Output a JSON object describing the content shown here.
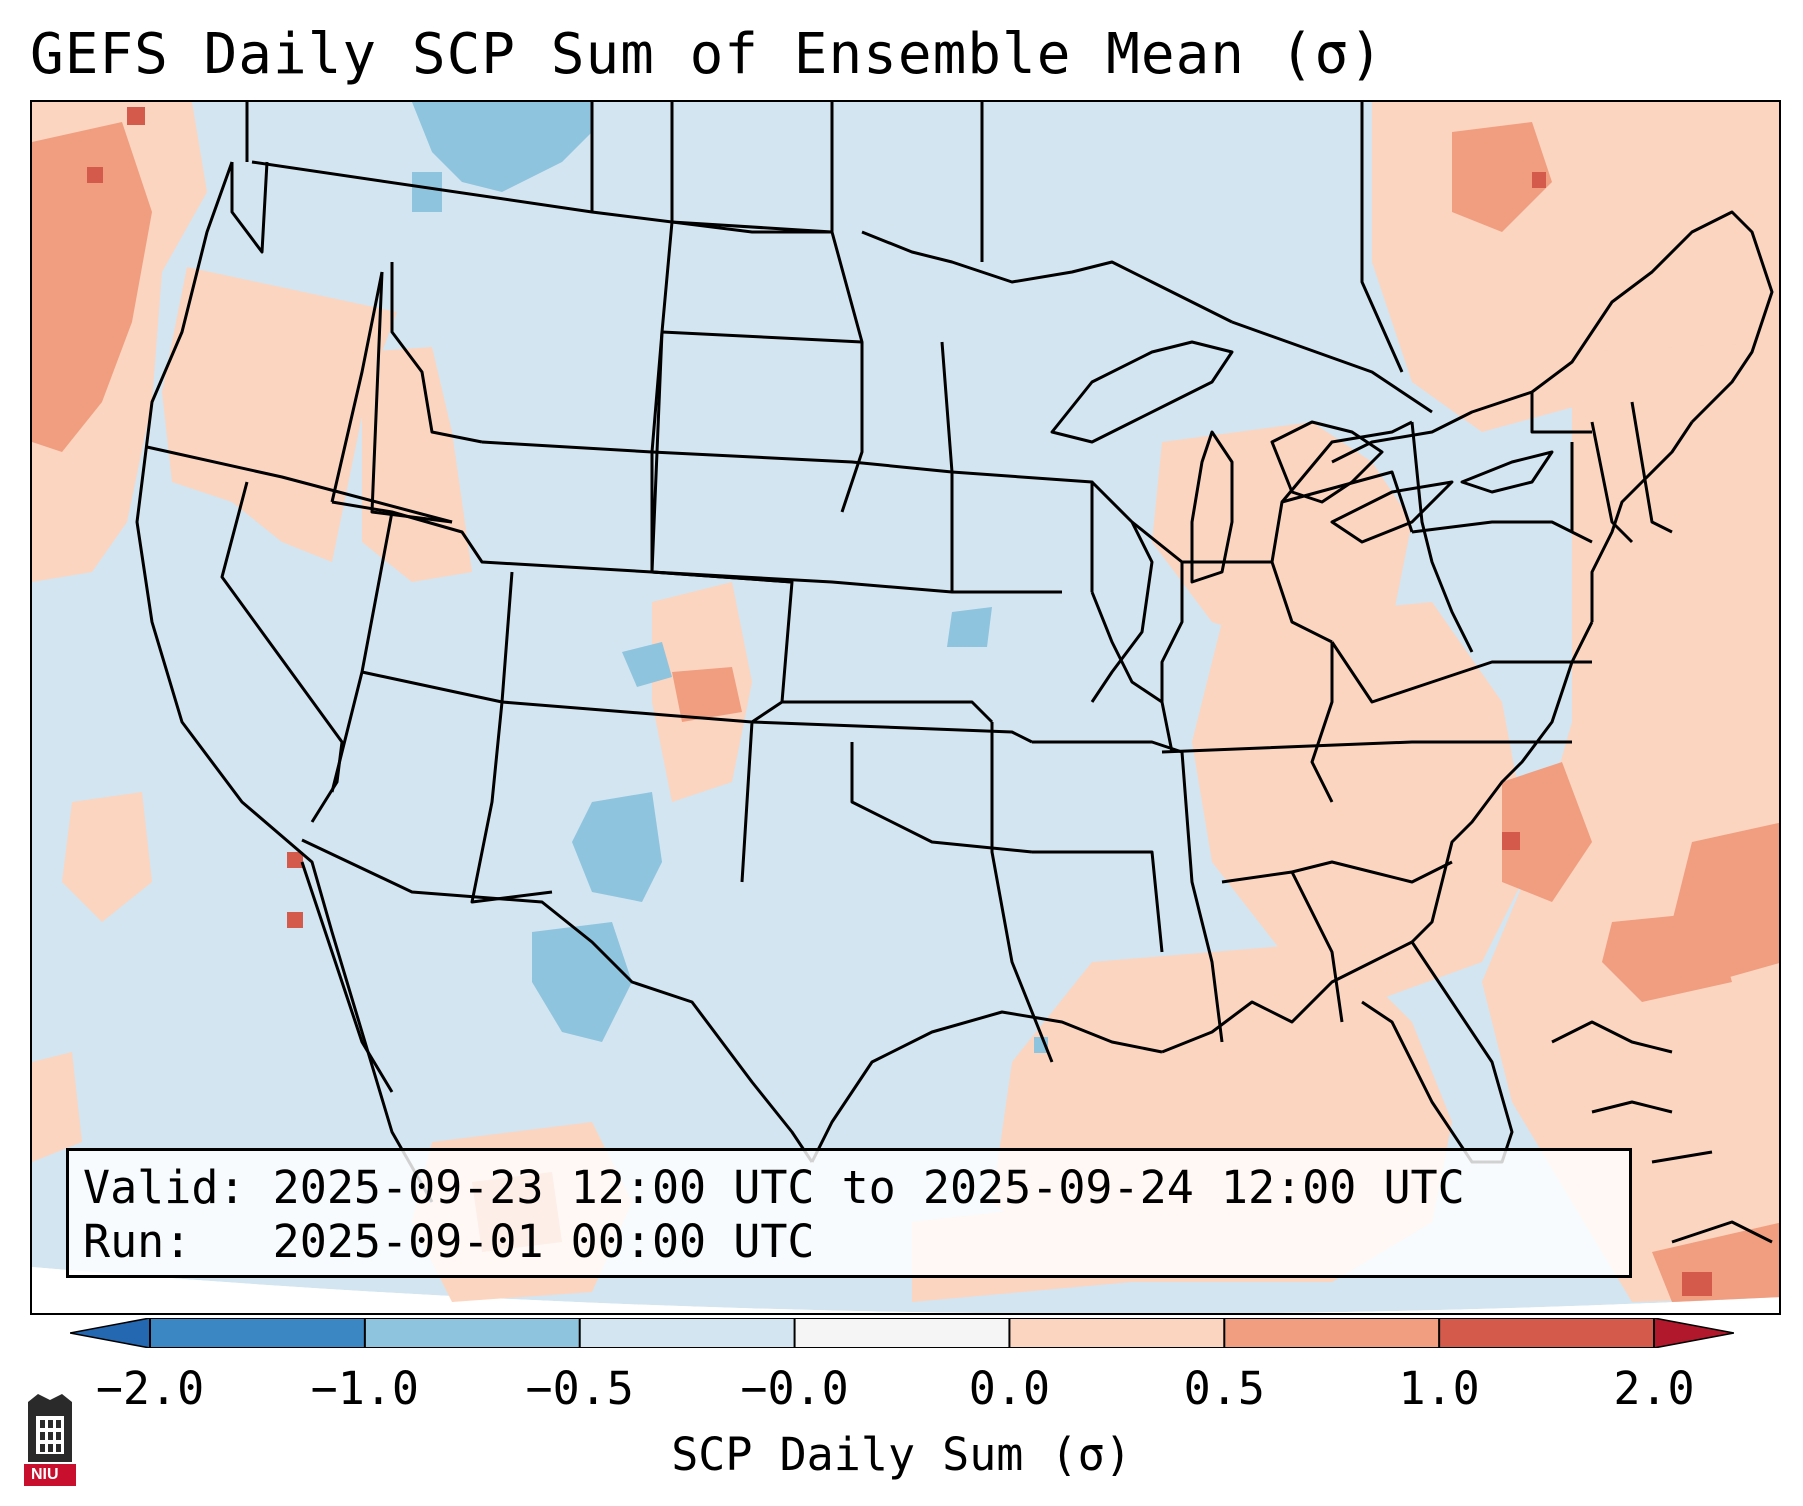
{
  "title": "GEFS Daily SCP Sum of Ensemble Mean (σ)",
  "annotation": {
    "valid_label": "Valid:",
    "valid_value": "2025-09-23 12:00 UTC to 2025-09-24 12:00 UTC",
    "run_label": "Run:",
    "run_value": "2025-09-01 00:00 UTC"
  },
  "colorbar": {
    "label": "SCP Daily Sum (σ)",
    "tick_labels": [
      "−2.0",
      "−1.0",
      "−0.5",
      "−0.0",
      "0.0",
      "0.5",
      "1.0",
      "2.0"
    ],
    "bins": [
      {
        "color": "#3a87c3"
      },
      {
        "color": "#8ec4de"
      },
      {
        "color": "#d3e5f0"
      },
      {
        "color": "#f5f5f5"
      },
      {
        "color": "#fbd5c0"
      },
      {
        "color": "#f09e7f"
      },
      {
        "color": "#d45a4c"
      }
    ],
    "extend_low_color": "#2368b0",
    "extend_high_color": "#b2182b"
  },
  "colors": {
    "ocean_background": "#d3e5f0",
    "near_neutral_blue": "#d3e5f0",
    "light_positive": "#fbd5c0",
    "moderate_positive": "#f09e7f",
    "strong_positive": "#d45a4c",
    "moderate_negative": "#8ec4de",
    "borders": "#000000"
  },
  "logo": {
    "text": "NIU",
    "icon": "university-tower-icon"
  }
}
